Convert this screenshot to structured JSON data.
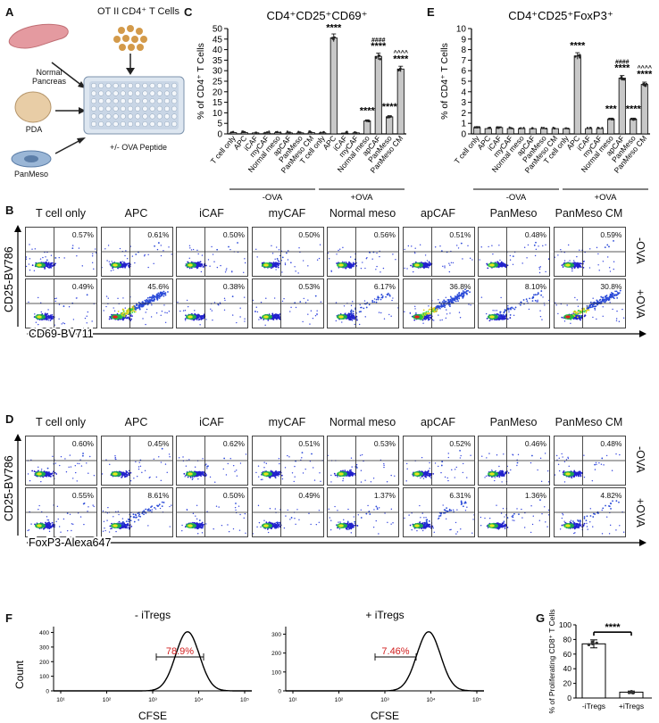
{
  "panelA": {
    "letter": "A",
    "top_label": "OT II CD4⁺ T Cells",
    "sources": [
      "Normal Pancreas",
      "PDA",
      "PanMeso"
    ],
    "plate_label": "+/- OVA Peptide"
  },
  "panelC": {
    "letter": "C",
    "chart_data": {
      "type": "bar",
      "title": "CD4⁺CD25⁺CD69⁺",
      "ylabel": "% of CD4⁺ T Cells",
      "ylim": [
        0,
        50
      ],
      "yticks": [
        "0",
        "5",
        "10",
        "15",
        "20",
        "25",
        "30",
        "35",
        "40",
        "45",
        "50"
      ],
      "categories": [
        "T cell only",
        "APC",
        "iCAF",
        "myCAF",
        "Normal meso",
        "apCAF",
        "PanMeso",
        "PanMeso CM",
        "T cell only",
        "APC",
        "iCAF",
        "myCAF",
        "Normal meso",
        "apCAF",
        "PanMeso",
        "PanMeso CM"
      ],
      "values": [
        0.6,
        0.6,
        0.5,
        0.5,
        0.6,
        0.5,
        0.5,
        0.6,
        0.5,
        45.6,
        0.4,
        0.5,
        6.2,
        36.8,
        8.1,
        30.8
      ],
      "groups": [
        "-OVA",
        "+OVA"
      ],
      "annotations": [
        {
          "index": 9,
          "text": "****"
        },
        {
          "index": 12,
          "text": "****"
        },
        {
          "index": 13,
          "text": "****"
        },
        {
          "index": 13,
          "text": "####"
        },
        {
          "index": 14,
          "text": "****"
        },
        {
          "index": 15,
          "text": "****"
        },
        {
          "index": 15,
          "text": "^^^^"
        }
      ]
    }
  },
  "panelE": {
    "letter": "E",
    "chart_data": {
      "type": "bar",
      "title": "CD4⁺CD25⁺FoxP3⁺",
      "ylabel": "% of CD4⁺ T Cells",
      "ylim": [
        0,
        10
      ],
      "yticks": [
        "0",
        "1",
        "2",
        "3",
        "4",
        "5",
        "6",
        "7",
        "8",
        "9",
        "10"
      ],
      "categories": [
        "T cell only",
        "APC",
        "iCAF",
        "myCAF",
        "Normal meso",
        "apCAF",
        "PanMeso",
        "PanMeso CM",
        "T cell only",
        "APC",
        "iCAF",
        "myCAF",
        "Normal meso",
        "apCAF",
        "PanMeso",
        "PanMeso CM"
      ],
      "values": [
        0.6,
        0.5,
        0.6,
        0.5,
        0.5,
        0.5,
        0.5,
        0.5,
        0.5,
        7.4,
        0.5,
        0.5,
        1.4,
        5.3,
        1.4,
        4.7
      ],
      "groups": [
        "-OVA",
        "+OVA"
      ],
      "annotations": [
        {
          "index": 9,
          "text": "****"
        },
        {
          "index": 12,
          "text": "***"
        },
        {
          "index": 13,
          "text": "****"
        },
        {
          "index": 13,
          "text": "####"
        },
        {
          "index": 14,
          "text": "****"
        },
        {
          "index": 15,
          "text": "****"
        },
        {
          "index": 15,
          "text": "^^^^"
        }
      ]
    }
  },
  "panelB": {
    "letter": "B",
    "columns": [
      "T cell only",
      "APC",
      "iCAF",
      "myCAF",
      "Normal meso",
      "apCAF",
      "PanMeso",
      "PanMeso CM"
    ],
    "row_minus": [
      "0.57%",
      "0.61%",
      "0.50%",
      "0.50%",
      "0.56%",
      "0.51%",
      "0.48%",
      "0.59%"
    ],
    "row_plus": [
      "0.49%",
      "45.6%",
      "0.38%",
      "0.53%",
      "6.17%",
      "36.8%",
      "8.10%",
      "30.8%"
    ],
    "row_minus_level": [
      0.0057,
      0.0061,
      0.005,
      0.005,
      0.0056,
      0.0051,
      0.0048,
      0.0059
    ],
    "row_plus_level": [
      0.0049,
      0.456,
      0.0038,
      0.0053,
      0.0617,
      0.368,
      0.081,
      0.308
    ],
    "minus_label": "-OVA",
    "plus_label": "+OVA",
    "yaxis": "CD25-BV786",
    "xaxis": "CD69-BV711"
  },
  "panelD": {
    "letter": "D",
    "columns": [
      "T cell only",
      "APC",
      "iCAF",
      "myCAF",
      "Normal meso",
      "apCAF",
      "PanMeso",
      "PanMeso CM"
    ],
    "row_minus": [
      "0.60%",
      "0.45%",
      "0.62%",
      "0.51%",
      "0.53%",
      "0.52%",
      "0.46%",
      "0.48%"
    ],
    "row_plus": [
      "0.55%",
      "8.61%",
      "0.50%",
      "0.49%",
      "1.37%",
      "6.31%",
      "1.36%",
      "4.82%"
    ],
    "row_minus_level": [
      0.006,
      0.0045,
      0.0062,
      0.0051,
      0.0053,
      0.0052,
      0.0046,
      0.0048
    ],
    "row_plus_level": [
      0.0055,
      0.0861,
      0.005,
      0.0049,
      0.0137,
      0.0631,
      0.0136,
      0.0482
    ],
    "minus_label": "-OVA",
    "plus_label": "+OVA",
    "yaxis": "CD25-BV786",
    "xaxis": "FoxP3-Alexa647"
  },
  "panelF": {
    "letter": "F",
    "left": {
      "title": "- iTregs",
      "gate": "78.9%",
      "yticks": [
        "0",
        "100",
        "200",
        "300",
        "400"
      ]
    },
    "right": {
      "title": "+ iTregs",
      "gate": "7.46%",
      "yticks": [
        "0",
        "100",
        "200",
        "300"
      ]
    },
    "xticks": [
      "10¹",
      "10²",
      "10³",
      "10⁴",
      "10⁵"
    ],
    "ylabel": "Count",
    "xlabel": "CFSE"
  },
  "panelG": {
    "letter": "G",
    "chart_data": {
      "type": "bar",
      "ylabel": "% of Proliferating CD8⁺ T Cells",
      "ylim": [
        0,
        100
      ],
      "yticks": [
        "0",
        "20",
        "40",
        "60",
        "80",
        "100"
      ],
      "categories": [
        "-iTregs",
        "+iTregs"
      ],
      "values": [
        74,
        8
      ],
      "significance": "****"
    }
  },
  "colors": {
    "bar": "#c8c8c8",
    "gate": "#d22020",
    "pct_red": "#cc2222"
  }
}
